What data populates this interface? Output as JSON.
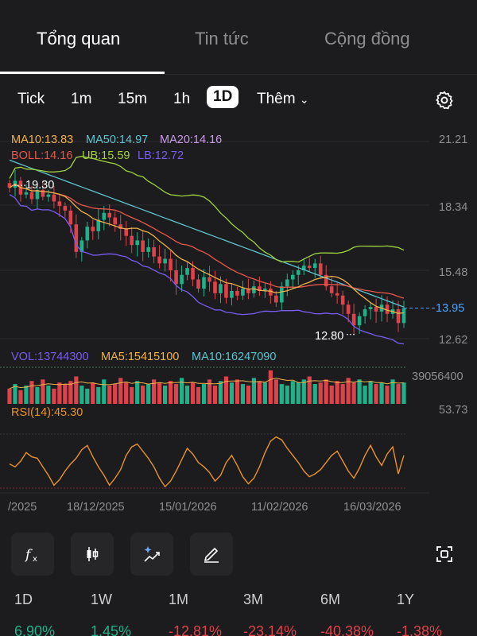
{
  "tabs": [
    "Tổng quan",
    "Tin tức",
    "Cộng đồng"
  ],
  "intervals": [
    "Tick",
    "1m",
    "15m",
    "1h",
    "1D",
    "Thêm"
  ],
  "indicators": {
    "ma10": "MA10:13.83",
    "ma50": "MA50:14.97",
    "ma20": "MA20:14.16",
    "boll": "BOLL:14.16",
    "ub": "UB:15.59",
    "lb": "LB:12.72",
    "vol": "VOL:13744300",
    "vol_ma5": "MA5:15415100",
    "vol_ma10": "MA10:16247090",
    "rsi": "RSI(14):45.30"
  },
  "price_axis": [
    "21.21",
    "18.34",
    "15.48",
    "13.95",
    "12.62"
  ],
  "volume_axis": "39056400",
  "rsi_axis": "53.73",
  "annotations": {
    "high": "19.30",
    "low": "12.80"
  },
  "date_axis": [
    "/2025",
    "18/12/2025",
    "15/01/2026",
    "11/02/2026",
    "16/03/2026"
  ],
  "performance": {
    "labels": [
      "1D",
      "1W",
      "1M",
      "3M",
      "6M",
      "1Y"
    ],
    "values": [
      "6.90%",
      "1.45%",
      "-12.81%",
      "-23.14%",
      "-40.38%",
      "-1.38%"
    ]
  },
  "colors": {
    "up": "#1fb28a",
    "down": "#e0424c",
    "ma10": "#f0b24a",
    "ma50": "#5ec4d0",
    "ma20": "#c89ae6",
    "boll": "#e8574a",
    "ub": "#9fd23c",
    "lb": "#7a5cf0",
    "rsi": "#e8932a"
  },
  "chart_data": {
    "type": "candlestick",
    "price_axis_ticks": [
      21.21,
      18.34,
      15.48,
      13.95,
      12.62
    ],
    "last_price": 13.95,
    "period_high": 19.3,
    "period_low": 12.8,
    "closes": [
      19.2,
      19.5,
      18.9,
      19.0,
      18.7,
      19.1,
      18.8,
      18.9,
      18.6,
      18.4,
      18.2,
      17.6,
      16.4,
      16.9,
      17.5,
      17.3,
      17.8,
      18.1,
      17.9,
      17.6,
      17.4,
      17.1,
      16.7,
      16.9,
      16.4,
      16.6,
      16.2,
      15.9,
      16.1,
      15.6,
      15.0,
      15.4,
      15.7,
      15.2,
      14.8,
      15.3,
      15.1,
      14.6,
      15.0,
      14.4,
      14.7,
      14.5,
      14.8,
      14.6,
      14.9,
      14.7,
      14.8,
      14.5,
      14.2,
      14.9,
      15.2,
      15.4,
      15.6,
      15.8,
      15.7,
      15.9,
      15.4,
      14.9,
      14.6,
      14.5,
      14.1,
      13.7,
      13.2,
      13.6,
      13.9,
      14.0,
      13.8,
      14.1,
      13.7,
      13.9,
      13.3,
      13.95
    ],
    "rsi": [
      39,
      37,
      41,
      47,
      44,
      43,
      37,
      31,
      24,
      28,
      34,
      39,
      43,
      49,
      52,
      44,
      37,
      31,
      24,
      29,
      35,
      45,
      51,
      53,
      48,
      43,
      37,
      29,
      23,
      27,
      34,
      42,
      50,
      46,
      40,
      37,
      33,
      27,
      31,
      40,
      45,
      38,
      30,
      25,
      29,
      37,
      47,
      55,
      58,
      56,
      50,
      45,
      40,
      34,
      30,
      32,
      35,
      40,
      45,
      48,
      41,
      34,
      29,
      36,
      45,
      52,
      44,
      38,
      46,
      51,
      32,
      45
    ]
  },
  "volume_data": {
    "values": [
      10,
      13,
      9,
      12,
      15,
      11,
      16,
      12,
      10,
      14,
      13,
      15,
      18,
      12,
      10,
      14,
      11,
      16,
      12,
      13,
      17,
      14,
      11,
      15,
      12,
      13,
      16,
      14,
      12,
      15,
      13,
      17,
      12,
      14,
      11,
      13,
      16,
      12,
      15,
      18,
      14,
      16,
      13,
      12,
      17,
      15,
      14,
      22,
      16,
      13,
      12,
      15,
      14,
      16,
      18,
      13,
      14,
      16,
      12,
      15,
      13,
      17,
      14,
      16,
      12,
      15,
      13,
      14,
      12,
      16,
      13,
      14
    ]
  }
}
